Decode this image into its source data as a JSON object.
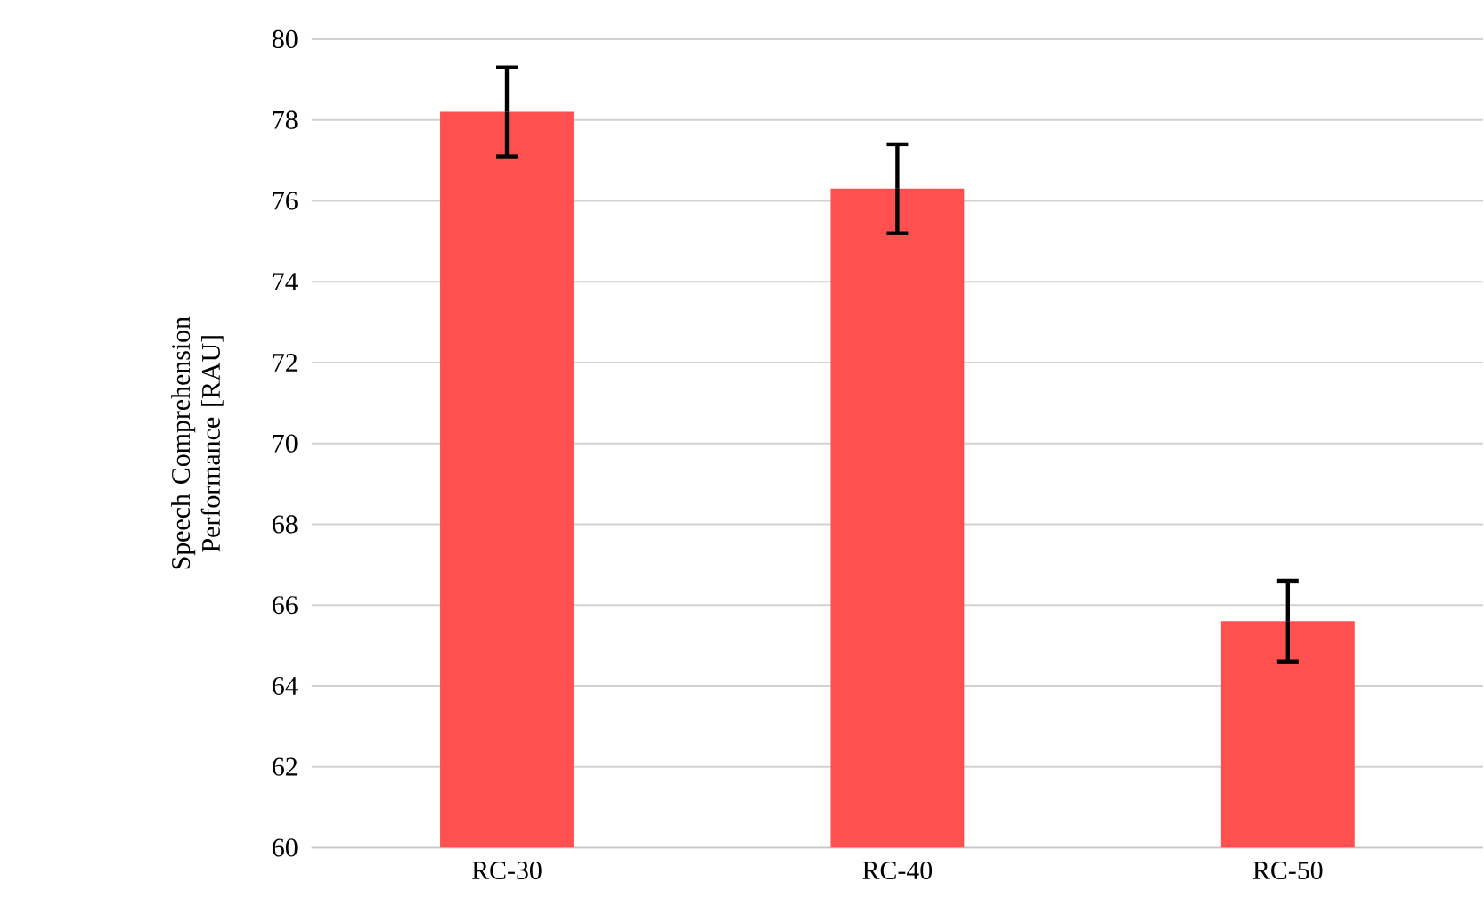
{
  "chart_data": {
    "type": "bar",
    "ylabel": "Speech Comprehension Performance [RAU]",
    "categories": [
      "RC-30",
      "RC-40",
      "RC-50"
    ],
    "values": [
      78.2,
      76.3,
      65.6
    ],
    "errors": [
      1.1,
      1.1,
      1.0
    ],
    "color": "#ff5050",
    "ylim": [
      60,
      80
    ],
    "yticks": [
      60,
      62,
      64,
      66,
      68,
      70,
      72,
      74,
      76,
      78,
      80
    ],
    "grid": "y"
  }
}
